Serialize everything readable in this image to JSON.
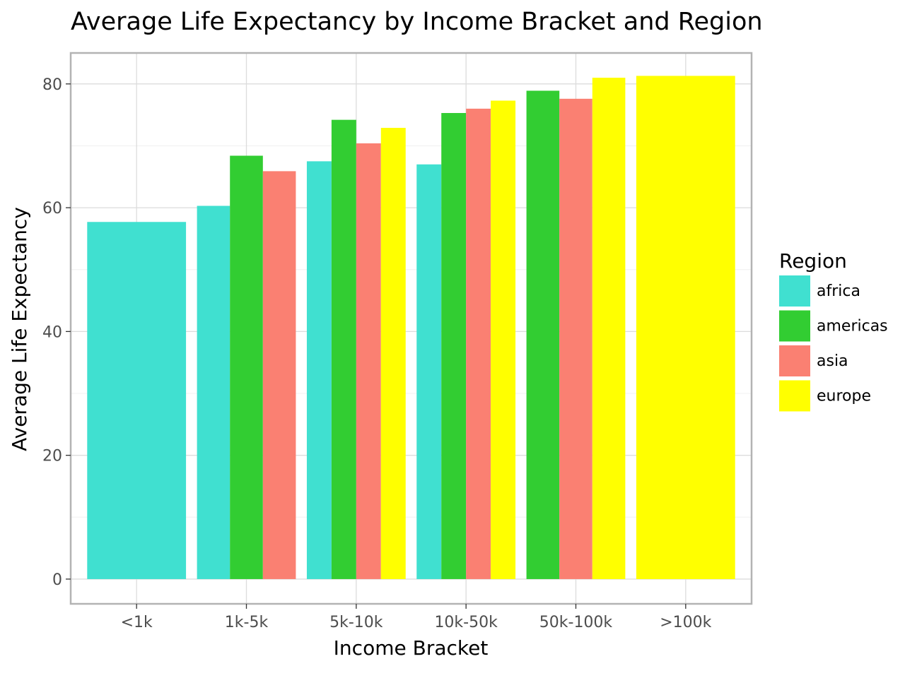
{
  "chart_data": {
    "type": "bar",
    "title": "Average Life Expectancy by Income Bracket and Region",
    "xlabel": "Income Bracket",
    "ylabel": "Average Life Expectancy",
    "categories": [
      "<1k",
      "1k-5k",
      "5k-10k",
      "10k-50k",
      "50k-100k",
      ">100k"
    ],
    "yticks": [
      0,
      20,
      40,
      60,
      80
    ],
    "ylim": [
      -4,
      85
    ],
    "grid": true,
    "legend": {
      "title": "Region",
      "placement": "right"
    },
    "series": [
      {
        "name": "africa",
        "color": "#40E0D0",
        "values": [
          57.7,
          60.3,
          67.5,
          67.0,
          null,
          null
        ]
      },
      {
        "name": "americas",
        "color": "#32CD32",
        "values": [
          null,
          68.4,
          74.2,
          75.3,
          78.9,
          null
        ]
      },
      {
        "name": "asia",
        "color": "#FA8072",
        "values": [
          null,
          65.9,
          70.4,
          76.0,
          77.6,
          null
        ]
      },
      {
        "name": "europe",
        "color": "#FFFF00",
        "values": [
          null,
          null,
          72.9,
          77.3,
          81.0,
          81.3
        ]
      }
    ]
  }
}
